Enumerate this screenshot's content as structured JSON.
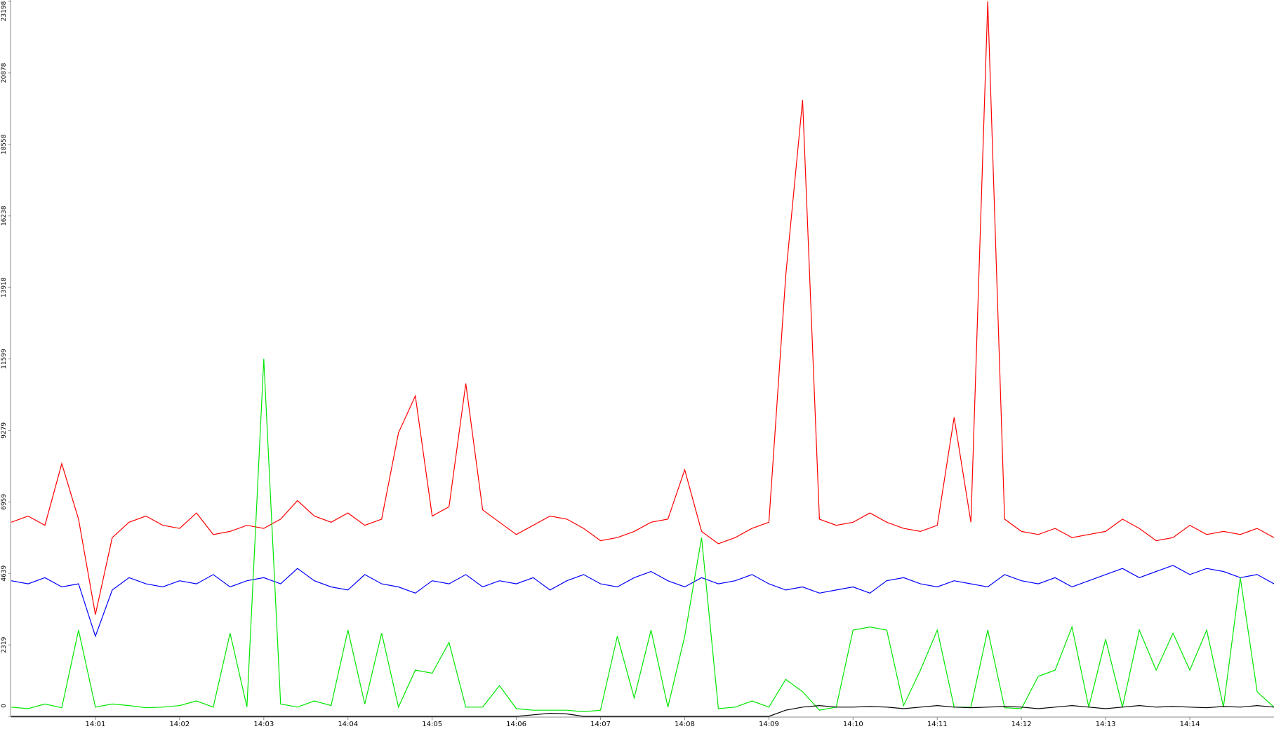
{
  "chart_data": {
    "type": "line",
    "x": [
      840,
      840.2,
      840.4,
      840.6,
      840.8,
      841,
      841.2,
      841.4,
      841.6,
      841.8,
      842,
      842.2,
      842.4,
      842.6,
      842.8,
      843,
      843.2,
      843.4,
      843.6,
      843.8,
      844,
      844.2,
      844.4,
      844.6,
      844.8,
      845,
      845.2,
      845.4,
      845.6,
      845.8,
      846,
      846.2,
      846.4,
      846.6,
      846.8,
      847,
      847.2,
      847.4,
      847.6,
      847.8,
      848,
      848.2,
      848.4,
      848.6,
      848.8,
      849,
      849.2,
      849.4,
      849.6,
      849.8,
      850,
      850.2,
      850.4,
      850.6,
      850.8,
      851,
      851.2,
      851.4,
      851.6,
      851.8,
      852,
      852.2,
      852.4,
      852.6,
      852.8,
      853,
      853.2,
      853.4,
      853.6,
      853.8,
      854,
      854.2,
      854.4,
      854.6,
      854.8,
      855
    ],
    "series": [
      {
        "color": "#ff0000",
        "values": [
          6300,
          6500,
          6200,
          8200,
          6400,
          3300,
          5800,
          6300,
          6500,
          6200,
          6100,
          6600,
          5900,
          6000,
          6200,
          6100,
          6400,
          7000,
          6500,
          6300,
          6600,
          6200,
          6400,
          9200,
          10400,
          6500,
          6800,
          10800,
          6700,
          6300,
          5900,
          6200,
          6500,
          6400,
          6100,
          5700,
          5800,
          6000,
          6300,
          6400,
          8000,
          6000,
          5600,
          5800,
          6100,
          6300,
          14300,
          20000,
          6400,
          6200,
          6300,
          6600,
          6300,
          6100,
          6000,
          6200,
          9700,
          6300,
          23198,
          6400,
          6000,
          5900,
          6100,
          5800,
          5900,
          6000,
          6400,
          6100,
          5700,
          5800,
          6200,
          5900,
          6000,
          5900,
          6100,
          5800
        ]
      },
      {
        "color": "#0000ff",
        "values": [
          4400,
          4300,
          4500,
          4200,
          4300,
          2600,
          4100,
          4500,
          4300,
          4200,
          4400,
          4300,
          4600,
          4200,
          4400,
          4500,
          4300,
          4800,
          4400,
          4200,
          4100,
          4600,
          4300,
          4200,
          4000,
          4400,
          4300,
          4600,
          4200,
          4400,
          4300,
          4500,
          4100,
          4400,
          4600,
          4300,
          4200,
          4500,
          4700,
          4400,
          4200,
          4500,
          4300,
          4400,
          4600,
          4300,
          4100,
          4200,
          4000,
          4100,
          4200,
          4000,
          4400,
          4500,
          4300,
          4200,
          4400,
          4300,
          4200,
          4600,
          4400,
          4300,
          4500,
          4200,
          4400,
          4600,
          4800,
          4500,
          4700,
          4900,
          4600,
          4800,
          4700,
          4500,
          4600,
          4300
        ]
      },
      {
        "color": "#00e600",
        "values": [
          300,
          250,
          400,
          280,
          2800,
          300,
          400,
          350,
          280,
          300,
          350,
          500,
          300,
          2700,
          300,
          11600,
          400,
          300,
          500,
          350,
          2800,
          400,
          2700,
          300,
          1500,
          1400,
          2400,
          300,
          300,
          1000,
          250,
          200,
          200,
          200,
          150,
          200,
          2600,
          600,
          2800,
          300,
          2600,
          5800,
          250,
          300,
          500,
          300,
          1200,
          800,
          200,
          300,
          2800,
          2900,
          2800,
          350,
          1500,
          2800,
          300,
          300,
          2800,
          280,
          250,
          1300,
          1500,
          2900,
          300,
          2500,
          300,
          2800,
          1500,
          2700,
          1500,
          2800,
          300,
          4500,
          800,
          300
        ]
      },
      {
        "color": "#000000",
        "values": [
          0,
          0,
          0,
          0,
          0,
          0,
          0,
          0,
          0,
          0,
          0,
          0,
          0,
          0,
          0,
          0,
          0,
          0,
          0,
          0,
          0,
          0,
          0,
          0,
          0,
          0,
          0,
          0,
          0,
          0,
          0,
          50,
          100,
          80,
          0,
          0,
          0,
          0,
          0,
          0,
          0,
          0,
          0,
          0,
          0,
          0,
          200,
          300,
          350,
          300,
          300,
          320,
          300,
          250,
          300,
          350,
          300,
          280,
          300,
          320,
          300,
          250,
          300,
          350,
          300,
          250,
          300,
          350,
          300,
          320,
          300,
          280,
          320,
          300,
          350,
          300
        ]
      }
    ],
    "xlim": [
      840,
      855
    ],
    "xticks": [
      {
        "value": 841,
        "label": "14:01"
      },
      {
        "value": 842,
        "label": "14:02"
      },
      {
        "value": 843,
        "label": "14:03"
      },
      {
        "value": 844,
        "label": "14:04"
      },
      {
        "value": 845,
        "label": "14:05"
      },
      {
        "value": 846,
        "label": "14:06"
      },
      {
        "value": 847,
        "label": "14:07"
      },
      {
        "value": 848,
        "label": "14:08"
      },
      {
        "value": 849,
        "label": "14:09"
      },
      {
        "value": 850,
        "label": "14:10"
      },
      {
        "value": 851,
        "label": "14:11"
      },
      {
        "value": 852,
        "label": "14:12"
      },
      {
        "value": 853,
        "label": "14:13"
      },
      {
        "value": 854,
        "label": "14:14"
      }
    ],
    "ylim": [
      0,
      23198
    ],
    "yticks": [
      0,
      2319,
      4639,
      6959,
      9279,
      11599,
      13918,
      16238,
      18558,
      20878,
      23198
    ]
  }
}
